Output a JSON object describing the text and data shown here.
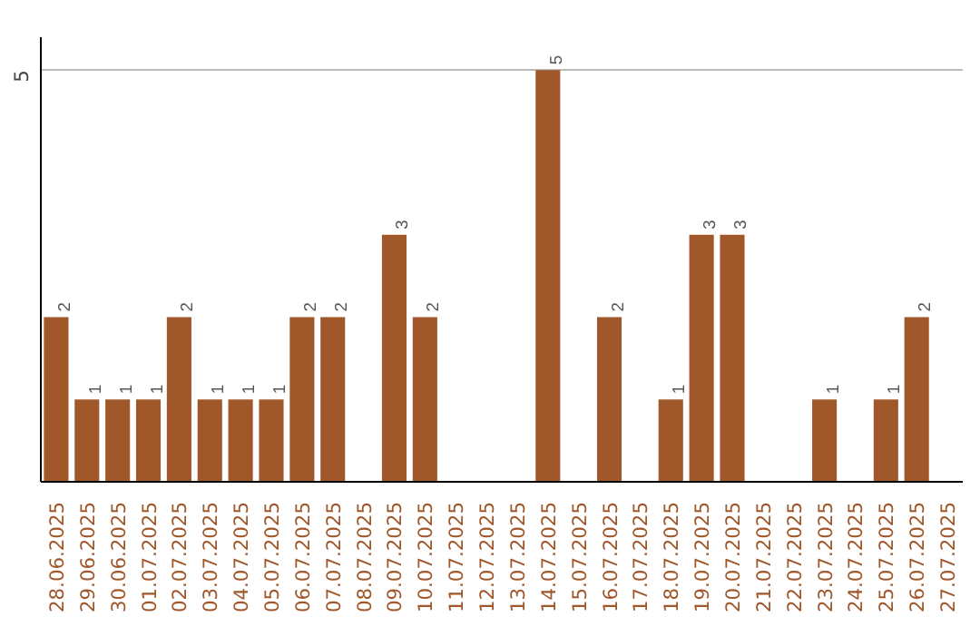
{
  "chart_data": {
    "type": "bar",
    "categories": [
      "28.06.2025",
      "29.06.2025",
      "30.06.2025",
      "01.07.2025",
      "02.07.2025",
      "03.07.2025",
      "04.07.2025",
      "05.07.2025",
      "06.07.2025",
      "07.07.2025",
      "08.07.2025",
      "09.07.2025",
      "10.07.2025",
      "11.07.2025",
      "12.07.2025",
      "13.07.2025",
      "14.07.2025",
      "15.07.2025",
      "16.07.2025",
      "17.07.2025",
      "18.07.2025",
      "19.07.2025",
      "20.07.2025",
      "21.07.2025",
      "22.07.2025",
      "23.07.2025",
      "24.07.2025",
      "25.07.2025",
      "26.07.2025",
      "27.07.2025"
    ],
    "values": [
      2,
      1,
      1,
      1,
      2,
      1,
      1,
      1,
      2,
      2,
      null,
      3,
      2,
      null,
      null,
      null,
      5,
      null,
      2,
      null,
      1,
      3,
      3,
      null,
      null,
      1,
      null,
      1,
      2,
      null
    ],
    "color": "#a0572a",
    "ylim": [
      0,
      5.4
    ],
    "yticks": [
      5
    ],
    "grid": "y",
    "data_labels": true
  }
}
